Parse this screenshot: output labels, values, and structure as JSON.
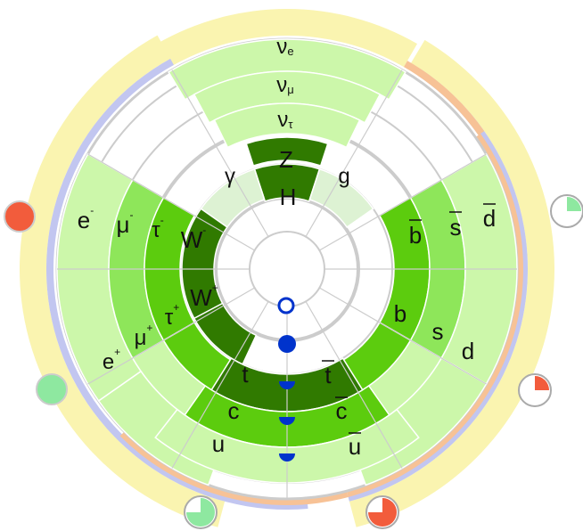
{
  "colors": {
    "light": "#ccf7aa",
    "medium": "#8ee65a",
    "strong": "#5ccc0e",
    "dark": "#307a00",
    "pale": "#ddf2d3",
    "yellow": "#faf4b0",
    "lavender": "#c2c6f0",
    "peach": "#f7c296",
    "ring": "#cccccc",
    "blue": "#0033cc",
    "red": "#f25c3c",
    "mint": "#8ee8a0"
  },
  "particles": {
    "nu_e": "ν",
    "nu_e_sub": "e",
    "nu_mu": "ν",
    "nu_mu_sub": "μ",
    "nu_tau": "ν",
    "nu_tau_sub": "τ",
    "Z": "Z",
    "H": "H",
    "gamma": "γ",
    "g": "g",
    "W_minus": "W",
    "W_minus_sup": "-",
    "W_plus": "W",
    "W_plus_sup": "+",
    "e_minus": "e",
    "e_minus_sup": "-",
    "mu_minus": "μ",
    "mu_minus_sup": "-",
    "tau_minus": "τ",
    "tau_minus_sup": "-",
    "e_plus": "e",
    "e_plus_sup": "+",
    "mu_plus": "μ",
    "mu_plus_sup": "+",
    "tau_plus": "τ",
    "tau_plus_sup": "+",
    "b_bar": "b",
    "s_bar": "s",
    "d_bar": "d",
    "b": "b",
    "s": "s",
    "d": "d",
    "t": "t",
    "t_bar": "t",
    "c": "c",
    "c_bar": "c",
    "u": "u",
    "u_bar": "u"
  },
  "indicators": {
    "top_right_fill": 0.25,
    "right_fill": 0.25,
    "bottom_left_fill": 0.75,
    "bottom_right_fill": 0.75
  }
}
